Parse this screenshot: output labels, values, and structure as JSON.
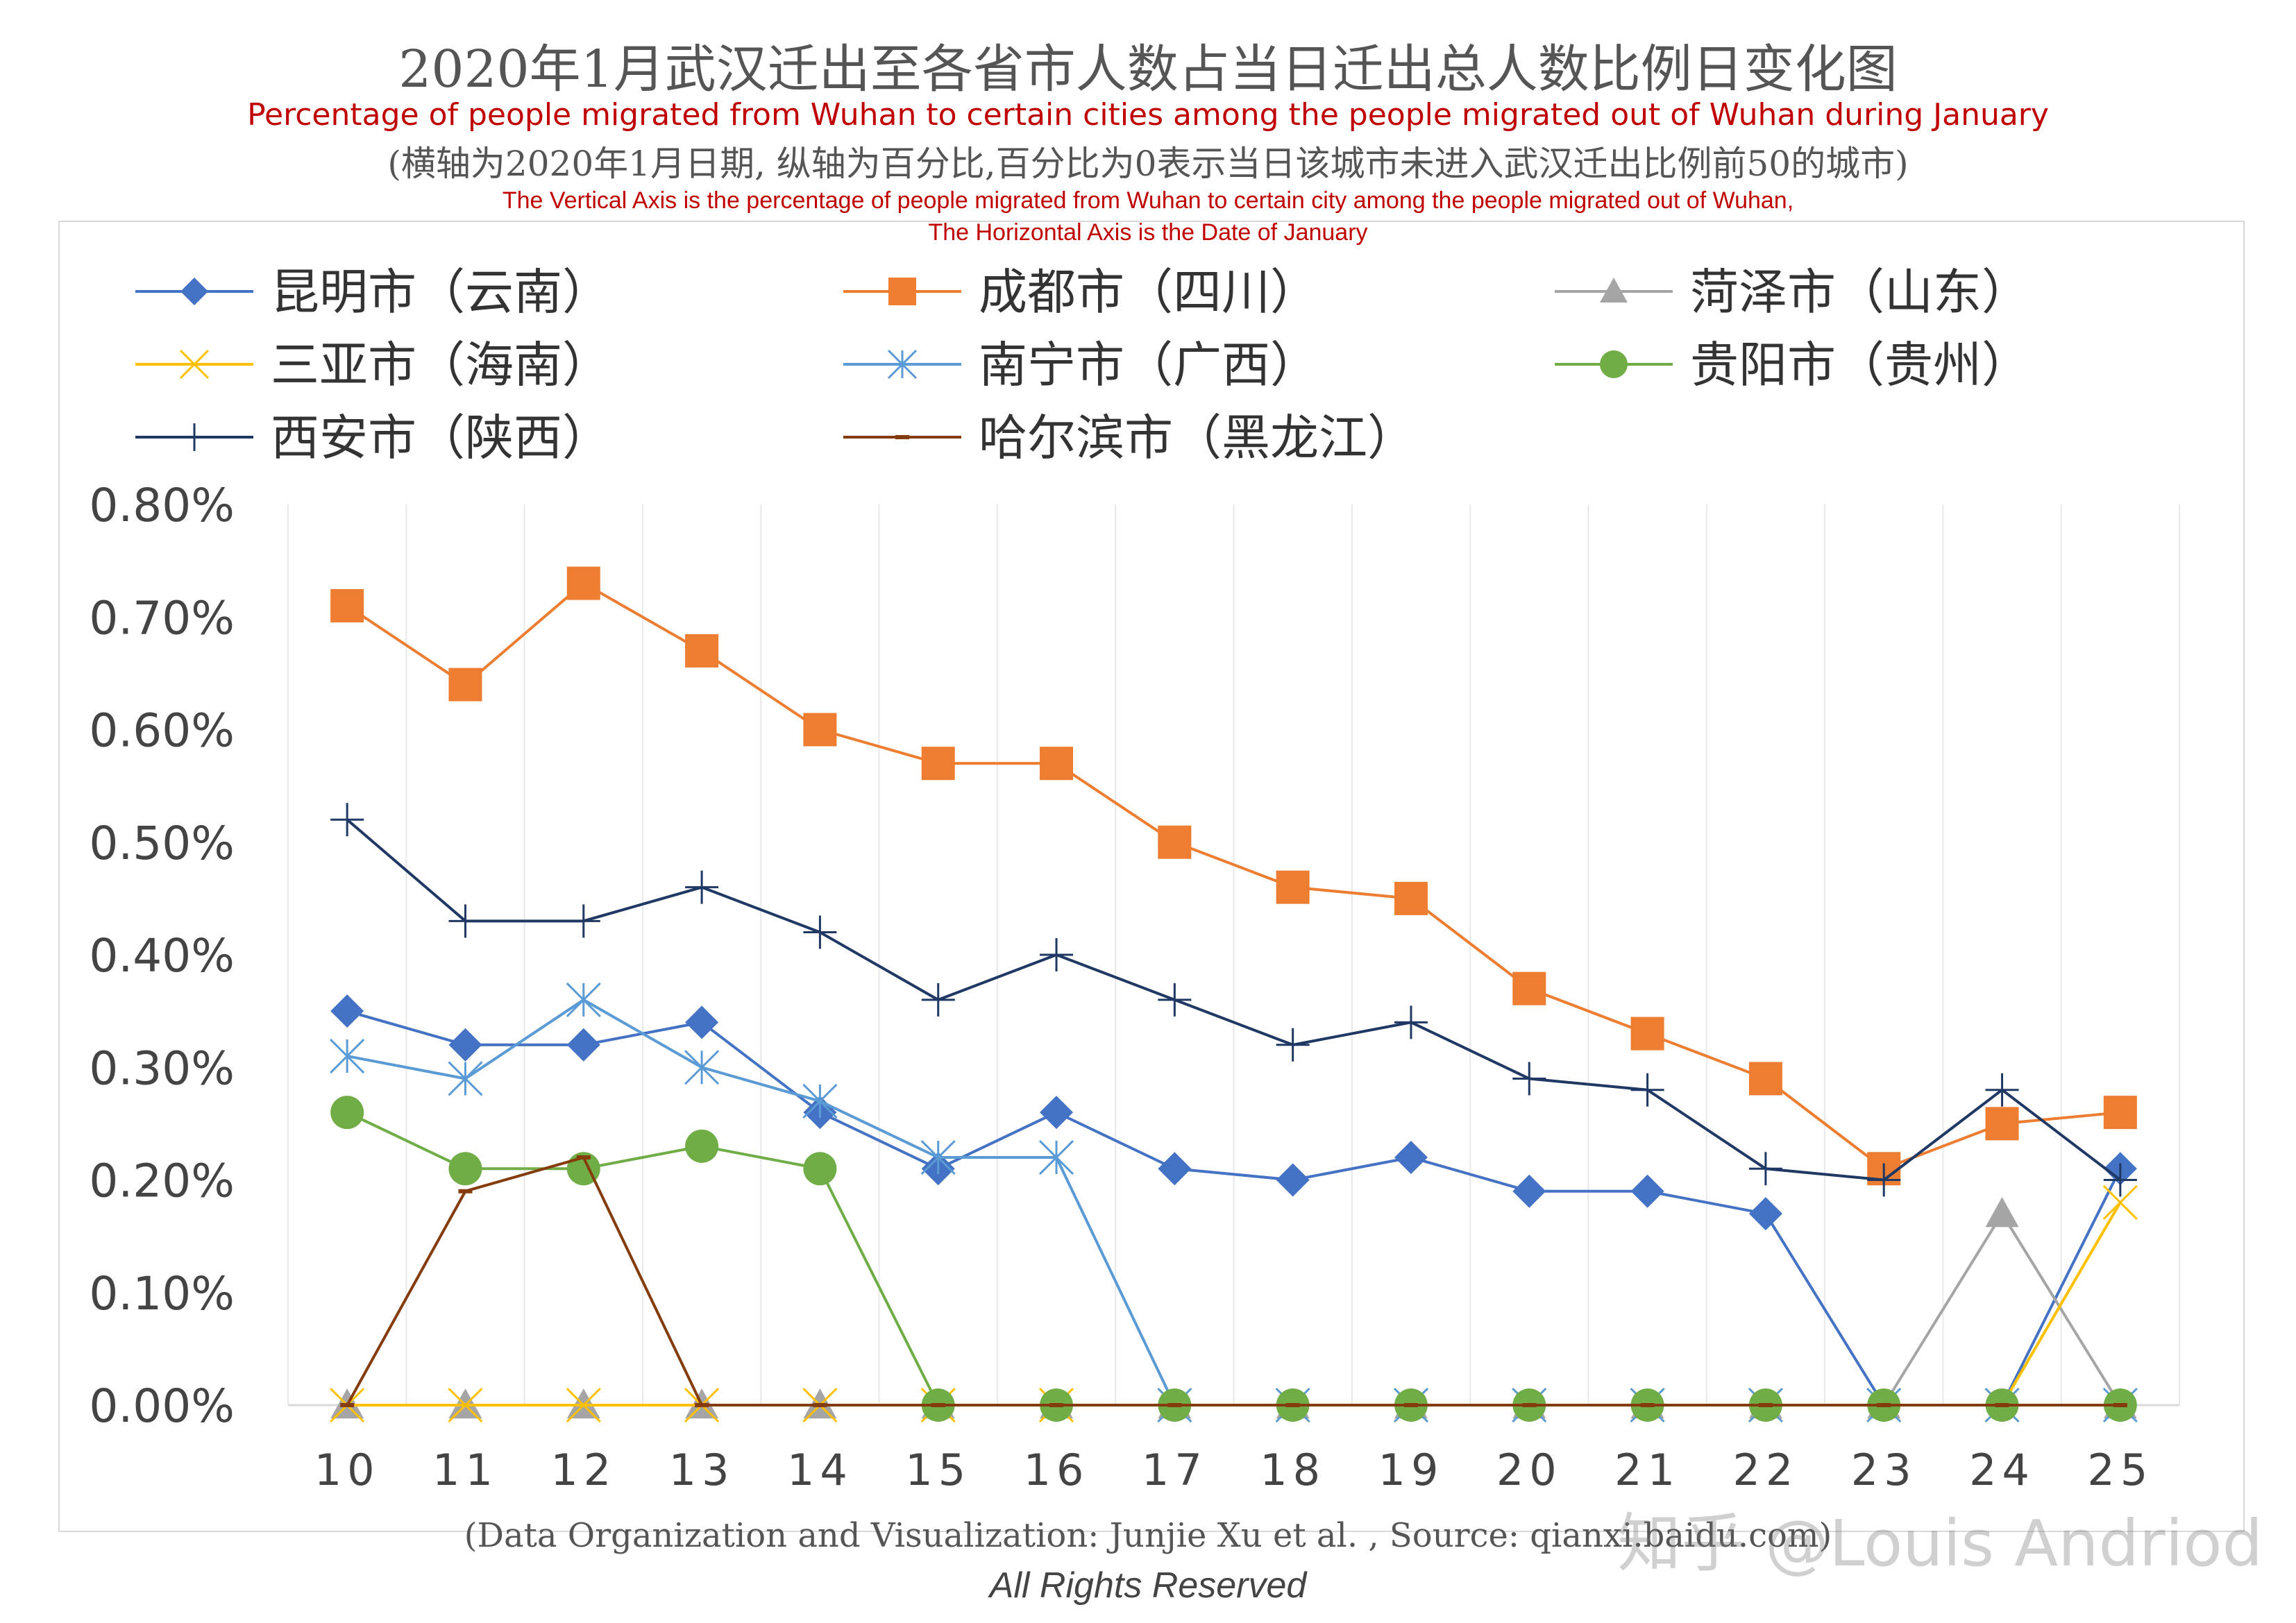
{
  "header": {
    "title_zh": "2020年1月武汉迁出至各省市人数占当日迁出总人数比例日变化图",
    "title_en": "Percentage of people migrated from Wuhan to certain cities among the people migrated out of Wuhan during January",
    "note_zh": "(横轴为2020年1月日期, 纵轴为百分比,百分比为0表示当日该城市未进入武汉迁出比例前50的城市)",
    "note_en_line1": "The Vertical Axis is the percentage of people migrated from Wuhan to certain city  among the people migrated out of Wuhan,",
    "note_en_line2": "The Horizontal Axis is the Date of January"
  },
  "footer": {
    "credit": "(Data Organization and Visualization: Junjie Xu et al. , Source: qianxi.baidu.com)",
    "rights": "All Rights Reserved",
    "watermark": "知乎 @Louis Andriod"
  },
  "chart_data": {
    "type": "line",
    "title": "2020年1月武汉迁出至各省市人数占当日迁出总人数比例日变化图",
    "xlabel": "",
    "ylabel": "",
    "x": [
      "10",
      "11",
      "12",
      "13",
      "14",
      "15",
      "16",
      "17",
      "18",
      "19",
      "20",
      "21",
      "22",
      "23",
      "24",
      "25"
    ],
    "ylim": [
      0,
      0.8
    ],
    "yticks": [
      "0.00%",
      "0.10%",
      "0.20%",
      "0.30%",
      "0.40%",
      "0.50%",
      "0.60%",
      "0.70%",
      "0.80%"
    ],
    "grid": "vertical",
    "legend_position": "top",
    "series": [
      {
        "name": "昆明市（云南）",
        "color": "#4472c4",
        "marker": "diamond",
        "values": [
          0.35,
          0.32,
          0.32,
          0.34,
          0.26,
          0.21,
          0.26,
          0.21,
          0.2,
          0.22,
          0.19,
          0.19,
          0.17,
          0.0,
          0.0,
          0.21
        ]
      },
      {
        "name": "成都市（四川）",
        "color": "#ed7d31",
        "marker": "square",
        "values": [
          0.71,
          0.64,
          0.73,
          0.67,
          0.6,
          0.57,
          0.57,
          0.5,
          0.46,
          0.45,
          0.37,
          0.33,
          0.29,
          0.21,
          0.25,
          0.26
        ]
      },
      {
        "name": "菏泽市（山东）",
        "color": "#a5a5a5",
        "marker": "triangle",
        "values": [
          0,
          0,
          0,
          0,
          0,
          0,
          0,
          0,
          0,
          0,
          0,
          0,
          0,
          0,
          0.17,
          0
        ]
      },
      {
        "name": "三亚市（海南）",
        "color": "#ffc000",
        "marker": "x",
        "values": [
          0,
          0,
          0,
          0,
          0,
          0,
          0,
          0,
          0,
          0,
          0,
          0,
          0,
          0,
          0,
          0.18
        ]
      },
      {
        "name": "南宁市（广西）",
        "color": "#5b9bd5",
        "marker": "star",
        "values": [
          0.31,
          0.29,
          0.36,
          0.3,
          0.27,
          0.22,
          0.22,
          0,
          0,
          0,
          0,
          0,
          0,
          0,
          0,
          0
        ]
      },
      {
        "name": "贵阳市（贵州）",
        "color": "#70ad47",
        "marker": "circle",
        "values": [
          0.26,
          0.21,
          0.21,
          0.23,
          0.21,
          0,
          0,
          0,
          0,
          0,
          0,
          0,
          0,
          0,
          0,
          0
        ]
      },
      {
        "name": "西安市（陕西）",
        "color": "#1f3864",
        "marker": "plus",
        "values": [
          0.52,
          0.43,
          0.43,
          0.46,
          0.42,
          0.36,
          0.4,
          0.36,
          0.32,
          0.34,
          0.29,
          0.28,
          0.21,
          0.2,
          0.28,
          0.2
        ]
      },
      {
        "name": "哈尔滨市（黑龙江）",
        "color": "#843c0c",
        "marker": "dash",
        "values": [
          0,
          0.19,
          0.22,
          0,
          0,
          0,
          0,
          0,
          0,
          0,
          0,
          0,
          0,
          0,
          0,
          0
        ]
      }
    ]
  }
}
